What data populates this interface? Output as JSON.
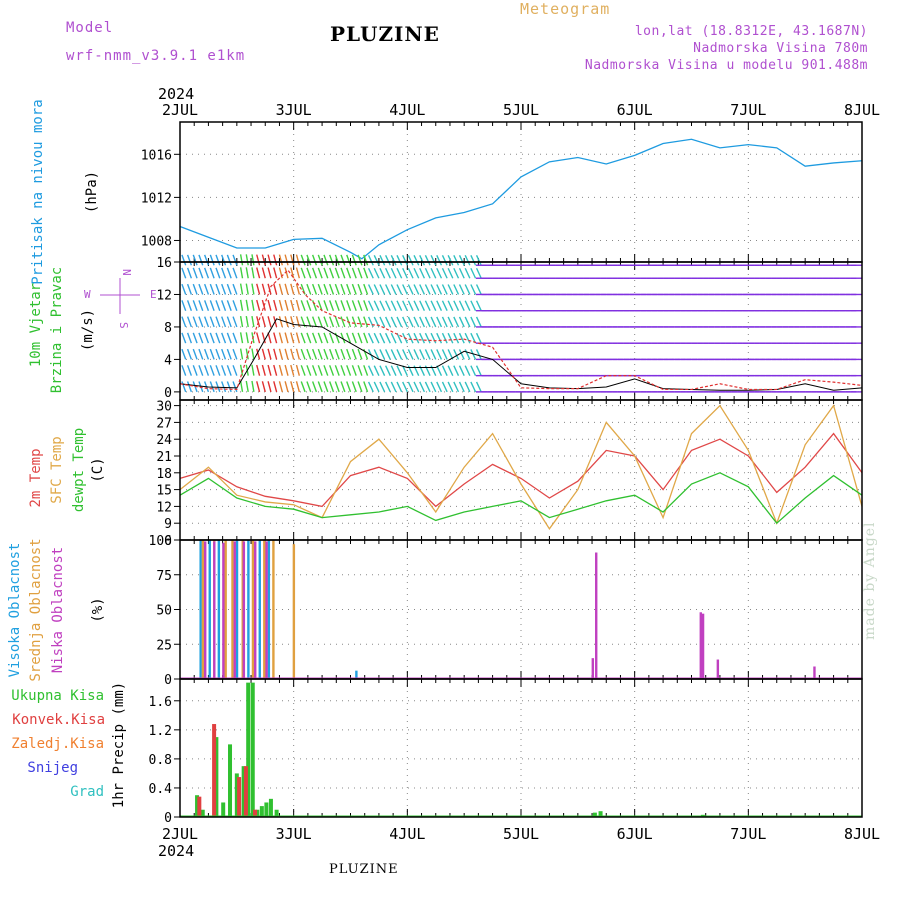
{
  "header": {
    "model_label": "Model",
    "model_name": "wrf-nmm_v3.9.1 e1km",
    "title": "PLUZINE",
    "meteogram_label": "Meteogram",
    "lonlat": "lon,lat (18.8312E, 43.1687N)",
    "elevation": "Nadmorska Visina 780m",
    "model_elevation": "Nadmorska Visina u modelu 901.488m",
    "credit": "made by Angel",
    "footer": "PLUZINE"
  },
  "colors": {
    "pressure": "#1e9be0",
    "wind_speed": "#000000",
    "wind_gust": "#e03030",
    "temp2m": "#e04848",
    "sfc_temp": "#e0a848",
    "dewpoint": "#30c030",
    "high_cloud": "#20a0e0",
    "mid_cloud": "#e0a040",
    "low_cloud": "#c040c0",
    "total_precip": "#30c030",
    "conv_precip": "#e04040",
    "frozen_precip": "#f08030",
    "snow": "#4040e0",
    "hail": "#30c0c0",
    "label_purple": "#b050d0",
    "label_orange": "#e0b060"
  },
  "chart_data": [
    {
      "type": "line",
      "name": "pressure",
      "x_start_year": "2024",
      "x_ticks": [
        "2JUL",
        "3JUL",
        "4JUL",
        "5JUL",
        "6JUL",
        "7JUL",
        "8JUL"
      ],
      "xlim": [
        0,
        6
      ],
      "ylabel": [
        "Pritisak na nivou mora",
        "(hPa)"
      ],
      "yticks": [
        1008,
        1012,
        1016
      ],
      "ylim": [
        1006,
        1019
      ],
      "grid": true,
      "x": [
        0,
        0.25,
        0.5,
        0.75,
        1.0,
        1.25,
        1.5,
        1.6,
        1.75,
        2.0,
        2.25,
        2.5,
        2.75,
        3.0,
        3.25,
        3.5,
        3.75,
        4.0,
        4.25,
        4.5,
        4.75,
        5.0,
        5.25,
        5.5,
        5.75,
        6.0
      ],
      "values": [
        1009.3,
        1008.3,
        1007.3,
        1007.3,
        1008.1,
        1008.2,
        1006.9,
        1006.3,
        1007.6,
        1009.0,
        1010.1,
        1010.6,
        1011.4,
        1013.9,
        1015.3,
        1015.7,
        1015.1,
        1015.9,
        1017.0,
        1017.4,
        1016.6,
        1016.9,
        1016.6,
        1014.9,
        1015.2,
        1015.4
      ]
    },
    {
      "type": "line",
      "name": "wind",
      "ylabel": [
        "10m Vjetar",
        "Brzina i Pravac",
        "(m/s)"
      ],
      "compass": [
        "N",
        "S",
        "W",
        "E"
      ],
      "yticks": [
        0,
        4,
        8,
        12,
        16
      ],
      "ylim": [
        -1,
        16
      ],
      "grid": true,
      "series": [
        {
          "key": "speed",
          "x": [
            0,
            0.25,
            0.5,
            0.65,
            0.85,
            1.0,
            1.25,
            1.5,
            1.75,
            2.0,
            2.25,
            2.5,
            2.75,
            3.0,
            3.25,
            3.5,
            3.75,
            4.0,
            4.25,
            4.5,
            4.75,
            5.0,
            5.25,
            5.5,
            5.75,
            6.0
          ],
          "values": [
            1.0,
            0.6,
            0.5,
            4.0,
            9.0,
            8.3,
            8.0,
            6.0,
            4.0,
            3.0,
            3.0,
            5.0,
            4.0,
            1.0,
            0.5,
            0.4,
            0.6,
            1.6,
            0.4,
            0.3,
            0.2,
            0.2,
            0.3,
            1.0,
            0.2,
            0.5
          ]
        },
        {
          "key": "gust",
          "x": [
            0,
            0.25,
            0.5,
            0.65,
            0.8,
            0.95,
            1.1,
            1.25,
            1.5,
            1.75,
            2.0,
            2.25,
            2.5,
            2.75,
            3.0,
            3.25,
            3.5,
            3.75,
            4.0,
            4.25,
            4.5,
            4.75,
            5.0,
            5.25,
            5.5,
            5.75,
            6.0
          ],
          "values": [
            1.0,
            0.4,
            0.3,
            7.0,
            13.0,
            15.0,
            12.0,
            10.0,
            8.5,
            8.2,
            6.5,
            6.3,
            6.5,
            5.5,
            0.5,
            0.4,
            0.4,
            2.0,
            2.0,
            0.3,
            0.3,
            1.0,
            0.3,
            0.3,
            1.5,
            1.2,
            0.8
          ]
        }
      ]
    },
    {
      "type": "line",
      "name": "temperature",
      "ylabel": [
        "2m Temp",
        "SFC Temp",
        "dewpt Temp",
        "(C)"
      ],
      "yticks": [
        6,
        9,
        12,
        15,
        18,
        21,
        24,
        27,
        30
      ],
      "ylim": [
        6,
        31
      ],
      "grid": true,
      "x": [
        0,
        0.25,
        0.5,
        0.75,
        1.0,
        1.25,
        1.5,
        1.75,
        2.0,
        2.25,
        2.5,
        2.75,
        3.0,
        3.25,
        3.5,
        3.75,
        4.0,
        4.25,
        4.5,
        4.75,
        5.0,
        5.25,
        5.5,
        5.75,
        6.0
      ],
      "series": [
        {
          "key": "t2m",
          "values": [
            17.0,
            18.5,
            15.5,
            13.8,
            13.0,
            12.0,
            17.5,
            19.0,
            17.0,
            12.0,
            16.0,
            19.5,
            17.0,
            13.5,
            16.5,
            22.0,
            21.0,
            15.0,
            22.0,
            24.0,
            21.0,
            14.5,
            19.0,
            25.0,
            18.0
          ]
        },
        {
          "key": "sfc",
          "values": [
            15.0,
            19.0,
            14.0,
            12.8,
            12.3,
            10.0,
            20.0,
            24.0,
            18.0,
            11.0,
            19.0,
            25.0,
            16.0,
            8.0,
            15.0,
            27.0,
            21.0,
            10.0,
            25.0,
            30.0,
            22.0,
            9.0,
            23.0,
            30.0,
            12.0
          ]
        },
        {
          "key": "dewpt",
          "values": [
            14.0,
            17.0,
            13.5,
            12.0,
            11.5,
            10.0,
            10.5,
            11.0,
            12.0,
            9.5,
            11.0,
            12.0,
            13.0,
            10.0,
            11.5,
            13.0,
            14.0,
            11.0,
            16.0,
            18.0,
            15.5,
            9.0,
            13.5,
            17.5,
            14.0
          ]
        }
      ]
    },
    {
      "type": "bar",
      "name": "clouds",
      "ylabel": [
        "Visoka Oblacnost",
        "Srednja Oblacnost",
        "Niska Oblacnost",
        "(%)"
      ],
      "yticks": [
        0,
        25,
        50,
        75,
        100
      ],
      "ylim": [
        0,
        100
      ],
      "grid": true,
      "series": [
        {
          "key": "high",
          "x": [
            0.18,
            0.26,
            0.34,
            0.5,
            0.6,
            0.7,
            0.78,
            1.55
          ],
          "values": [
            100,
            100,
            100,
            100,
            100,
            100,
            100,
            6
          ]
        },
        {
          "key": "mid",
          "x": [
            0.2,
            0.3,
            0.4,
            0.46,
            0.55,
            0.64,
            0.74,
            0.82,
            1.0
          ],
          "values": [
            100,
            100,
            100,
            100,
            100,
            100,
            100,
            100,
            97
          ]
        },
        {
          "key": "low",
          "x": [
            0.22,
            0.3,
            0.38,
            0.48,
            0.56,
            0.66,
            0.76,
            3.63,
            3.66,
            4.58,
            4.6,
            4.73,
            5.58
          ],
          "values": [
            99,
            99,
            98,
            99,
            99,
            99,
            99,
            15,
            91,
            48,
            47,
            14,
            9
          ]
        }
      ]
    },
    {
      "type": "bar",
      "name": "precipitation",
      "ylabel": [
        "1hr Precip (mm)"
      ],
      "legend": [
        "Ukupna Kisa",
        "Konvek.Kisa",
        "Zaledj.Kisa",
        "Snijeg",
        "Grad"
      ],
      "yticks": [
        0,
        0.4,
        0.8,
        1.2,
        1.6
      ],
      "ylim": [
        0,
        1.9
      ],
      "grid": true,
      "series": [
        {
          "key": "total",
          "x": [
            0.15,
            0.2,
            0.32,
            0.38,
            0.44,
            0.5,
            0.56,
            0.6,
            0.64,
            0.68,
            0.72,
            0.76,
            0.8,
            0.85,
            3.65,
            3.7,
            4.6
          ],
          "values": [
            0.3,
            0.1,
            1.1,
            0.2,
            1.0,
            0.6,
            0.7,
            1.85,
            1.85,
            0.1,
            0.15,
            0.2,
            0.25,
            0.1,
            0.06,
            0.08,
            0.03
          ]
        },
        {
          "key": "conv",
          "x": [
            0.17,
            0.3,
            0.52,
            0.58,
            0.66
          ],
          "values": [
            0.28,
            1.28,
            0.55,
            0.7,
            0.1
          ]
        }
      ]
    }
  ]
}
